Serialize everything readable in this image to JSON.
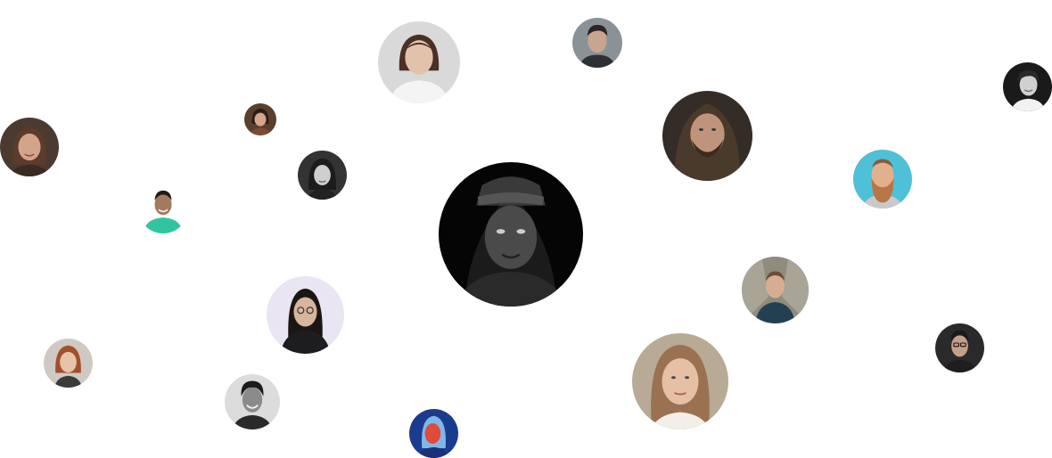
{
  "avatar_cloud": {
    "featured": "person-portrait-icon",
    "avatars": [
      {
        "name": "avatar-woman-top-center",
        "bg": "#d9d9d9",
        "skin": "#e3c2ac",
        "hair": "#4a3025",
        "shirt": "#f4f4f4"
      },
      {
        "name": "avatar-man-top",
        "bg": "#8a9298",
        "skin": "#c9a48e",
        "hair": "#2b2422",
        "shirt": "#2d3134"
      },
      {
        "name": "avatar-man-top-right",
        "bg": "#1a1a1a",
        "skin": "#d0d0d0",
        "hair": "#2a2a2a",
        "shirt": "#f2f2f2"
      },
      {
        "name": "avatar-woman-left",
        "bg": "#4b3a30",
        "skin": "#d2a48a",
        "hair": "#5b3b2a",
        "shirt": "#3b2a22"
      },
      {
        "name": "avatar-woman-small",
        "bg": "#5a3e2e",
        "skin": "#d6a68b",
        "hair": "#2b1d18",
        "shirt": "#7c4a35"
      },
      {
        "name": "avatar-man-hood",
        "bg": "#332c27",
        "skin": "#c0947a",
        "hair": "#3d2a1e",
        "shirt": "#4a3a2c"
      },
      {
        "name": "avatar-woman-bw",
        "bg": "#333333",
        "skin": "#cfcfcf",
        "hair": "#1c1c1c",
        "shirt": "#222222"
      },
      {
        "name": "avatar-man-green-shirt",
        "bg": "#ffffff",
        "skin": "#a47a5e",
        "hair": "#1e1b19",
        "shirt": "#30c49f"
      },
      {
        "name": "avatar-man-beard",
        "bg": "#4ec0d8",
        "skin": "#e3b08d",
        "hair": "#b87545",
        "shirt": "#c9c9c9"
      },
      {
        "name": "avatar-woman-glasses",
        "bg": "#e9e5f3",
        "skin": "#d9b59c",
        "hair": "#1a1614",
        "shirt": "#1d1d1f"
      },
      {
        "name": "avatar-man-hallway",
        "bg": "#8f8c7d",
        "skin": "#d6ad93",
        "hair": "#6b4e36",
        "shirt": "#234053"
      },
      {
        "name": "avatar-woman-redhead",
        "bg": "#cfc9c4",
        "skin": "#e7c3aa",
        "hair": "#a2502c",
        "shirt": "#3a3a3a"
      },
      {
        "name": "avatar-man-smiling-bw",
        "bg": "#dcdcdc",
        "skin": "#8b8b8b",
        "hair": "#1b1b1b",
        "shirt": "#2a2a2a"
      },
      {
        "name": "avatar-woman-neon",
        "bg": "#1a3c8f",
        "skin": "#e04a3a",
        "hair": "#7fb8e8",
        "shirt": "#1e2f7a"
      },
      {
        "name": "avatar-woman-bottom",
        "bg": "#b8aa95",
        "skin": "#e6c0a5",
        "hair": "#9a7252",
        "shirt": "#f3eee7"
      },
      {
        "name": "avatar-man-glasses",
        "bg": "#2a2a2a",
        "skin": "#c49f8a",
        "hair": "#1c1a19",
        "shirt": "#1e1e1e"
      }
    ]
  }
}
